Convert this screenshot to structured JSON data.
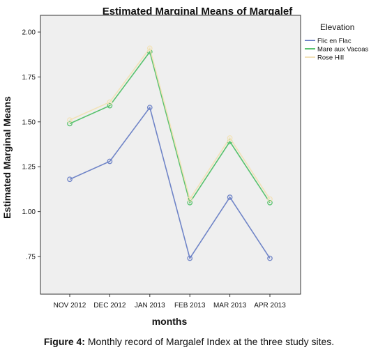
{
  "chart_data": {
    "type": "line",
    "title": "Estimated Marginal Means of Margalef",
    "xlabel": "months",
    "ylabel": "Estimated Marginal Means",
    "categories": [
      "NOV 2012",
      "DEC 2012",
      "JAN 2013",
      "FEB 2013",
      "MAR 2013",
      "APR 2013"
    ],
    "ylim": [
      0.5,
      2.1
    ],
    "yticks": [
      0.75,
      1.0,
      1.25,
      1.5,
      1.75,
      2.0
    ],
    "ytick_labels": [
      ".75",
      "1.00",
      "1.25",
      "1.50",
      "1.75",
      "2.00"
    ],
    "legend_title": "Elevation",
    "legend_position": "right",
    "grid": false,
    "background_color": "#efefef",
    "series": [
      {
        "name": "Flic en Flac",
        "color": "#6f84c7",
        "values": [
          1.18,
          1.28,
          1.58,
          0.74,
          1.08,
          0.74
        ]
      },
      {
        "name": "Mare aux Vacoas",
        "color": "#58c26e",
        "values": [
          1.49,
          1.59,
          1.89,
          1.05,
          1.39,
          1.05
        ]
      },
      {
        "name": "Rose Hill",
        "color": "#f2e2b8",
        "values": [
          1.51,
          1.61,
          1.91,
          1.07,
          1.41,
          1.07
        ]
      }
    ]
  },
  "caption": {
    "label": "Figure 4:",
    "text": " Monthly record of Margalef Index at the three study sites."
  }
}
